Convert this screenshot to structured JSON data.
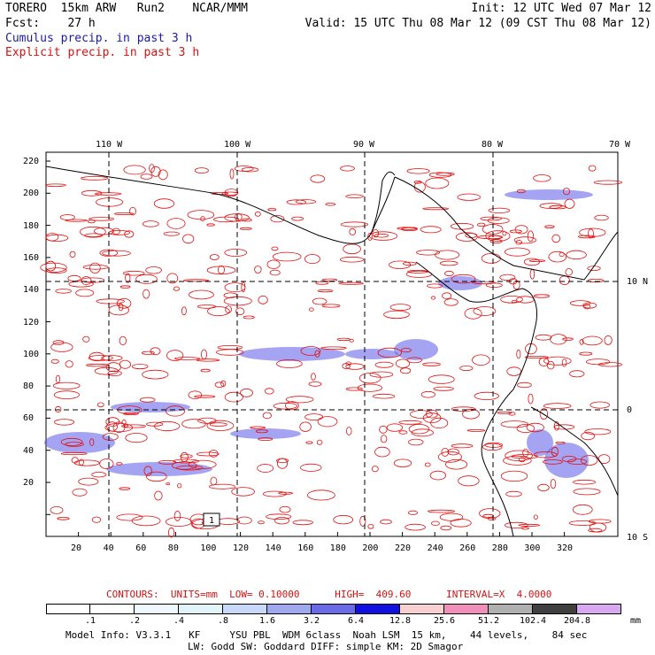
{
  "header": {
    "model": "TORERO  15km ARW   Run2    NCAR/MMM",
    "init": "Init: 12 UTC Wed 07 Mar 12",
    "fcst": "Fcst:    27 h",
    "valid": "Valid: 15 UTC Thu 08 Mar 12 (09 CST Thu 08 Mar 12)",
    "legend_blue": "Cumulus precip. in past 3 h",
    "legend_red": "Explicit precip. in past 3 h"
  },
  "map": {
    "lon_labels": [
      "110 W",
      "100 W",
      "90 W",
      "80 W",
      "70 W"
    ],
    "lat_labels": [
      "10 N",
      "0",
      "10 S"
    ],
    "x_ticks": [
      "20",
      "40",
      "60",
      "80",
      "100",
      "120",
      "140",
      "160",
      "180",
      "200",
      "220",
      "240",
      "260",
      "280",
      "300",
      "320"
    ],
    "y_ticks": [
      "220",
      "200",
      "180",
      "160",
      "140",
      "120",
      "100",
      "80",
      "60",
      "40",
      "20"
    ],
    "box_label": "1",
    "colors": {
      "explicit": "#e01010",
      "cumulus": "#5a5ae8",
      "land": "#000000"
    }
  },
  "contours": {
    "text": "CONTOURS:  UNITS=mm  LOW= 0.10000      HIGH=  409.60      INTERVAL=X  4.0000"
  },
  "colorbar": {
    "unit": "mm",
    "labels": [
      ".1",
      ".2",
      ".4",
      ".8",
      "1.6",
      "3.2",
      "6.4",
      "12.8",
      "25.6",
      "51.2",
      "102.4",
      "204.8"
    ],
    "colors": [
      "#ffffff",
      "#ffffff",
      "#f0f8ff",
      "#e0f4fa",
      "#c8d8f8",
      "#a0a8f0",
      "#6a6ae8",
      "#1010e0",
      "#f8d0d0",
      "#f090b8",
      "#b0b0b0",
      "#404040",
      "#d8a8f0"
    ]
  },
  "footer": {
    "line1": "Model Info: V3.3.1   KF     YSU PBL  WDM 6class  Noah LSM  15 km,    44 levels,    84 sec",
    "line2": "LW: Godd SW: Goddard DIFF: simple KM: 2D Smagor"
  }
}
